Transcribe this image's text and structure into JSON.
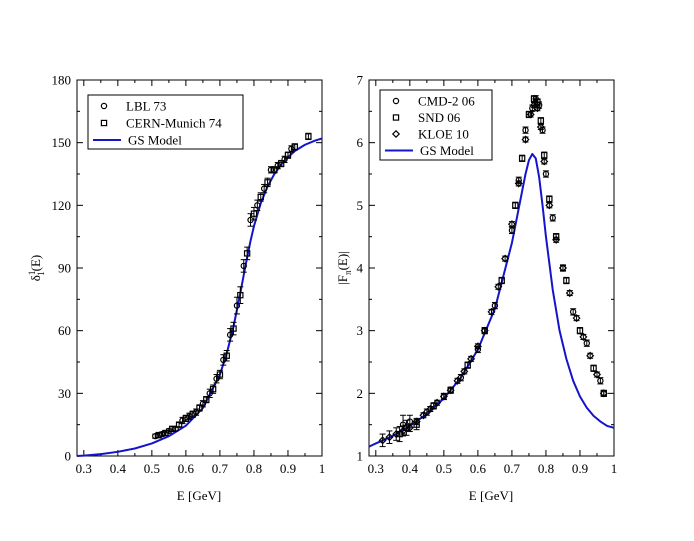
{
  "colors": {
    "model_line": "#1414cc",
    "points": "#000000",
    "background": "#ffffff"
  },
  "chart_data": [
    {
      "type": "scatter",
      "panel": "left",
      "xlabel": "E  [GeV]",
      "ylabel": "δ",
      "ylabel_sup": "1",
      "ylabel_sub": "1",
      "ylabel_suffix": "(E)",
      "xlim": [
        0.28,
        1.0
      ],
      "ylim": [
        0,
        180
      ],
      "xticks": [
        0.3,
        0.4,
        0.5,
        0.6,
        0.7,
        0.8,
        0.9,
        1.0
      ],
      "xtick_labels": [
        "0.3",
        "0.4",
        "0.5",
        "0.6",
        "0.7",
        "0.8",
        "0.9",
        "1"
      ],
      "yticks": [
        0,
        30,
        60,
        90,
        120,
        150,
        180
      ],
      "ytick_labels": [
        "0",
        "30",
        "60",
        "90",
        "120",
        "150",
        "180"
      ],
      "legend_position": "top-left",
      "legend": [
        {
          "label": "LBL 73",
          "marker": "circle"
        },
        {
          "label": "CERN-Munich 74",
          "marker": "square"
        },
        {
          "label": "GS Model",
          "marker": "line"
        }
      ],
      "series": [
        {
          "name": "LBL 73",
          "marker": "circle",
          "points": [
            [
              0.51,
              9.5,
              1
            ],
            [
              0.53,
              10.5,
              1
            ],
            [
              0.55,
              12,
              1
            ],
            [
              0.57,
              13,
              1
            ],
            [
              0.59,
              17,
              1.5
            ],
            [
              0.61,
              19,
              1.5
            ],
            [
              0.63,
              21,
              1.5
            ],
            [
              0.65,
              25,
              1.5
            ],
            [
              0.67,
              30,
              2
            ],
            [
              0.69,
              37,
              2
            ],
            [
              0.71,
              46,
              2.5
            ],
            [
              0.73,
              58,
              3
            ],
            [
              0.75,
              72,
              4
            ],
            [
              0.77,
              91,
              3
            ],
            [
              0.79,
              113,
              3
            ],
            [
              0.81,
              120,
              2.5
            ],
            [
              0.83,
              128,
              2
            ],
            [
              0.85,
              137,
              1.5
            ],
            [
              0.87,
              139,
              1.5
            ],
            [
              0.89,
              142,
              1.5
            ],
            [
              0.91,
              147,
              1.5
            ]
          ]
        },
        {
          "name": "CERN-Munich 74",
          "marker": "square",
          "points": [
            [
              0.52,
              10,
              1
            ],
            [
              0.54,
              11,
              1
            ],
            [
              0.56,
              13,
              1
            ],
            [
              0.58,
              15,
              1
            ],
            [
              0.6,
              18,
              1.5
            ],
            [
              0.62,
              20,
              1.5
            ],
            [
              0.64,
              23,
              1.5
            ],
            [
              0.66,
              27,
              1.5
            ],
            [
              0.68,
              32,
              2
            ],
            [
              0.7,
              39,
              2
            ],
            [
              0.72,
              48,
              2.5
            ],
            [
              0.74,
              61,
              3
            ],
            [
              0.76,
              77,
              4
            ],
            [
              0.78,
              97,
              3
            ],
            [
              0.8,
              116,
              3
            ],
            [
              0.82,
              124,
              2
            ],
            [
              0.84,
              131,
              2
            ],
            [
              0.86,
              137,
              1.5
            ],
            [
              0.88,
              140,
              1.5
            ],
            [
              0.9,
              144,
              1.5
            ],
            [
              0.92,
              148,
              1.5
            ],
            [
              0.96,
              153,
              1.5
            ]
          ]
        },
        {
          "name": "GS Model",
          "marker": "line",
          "points": [
            [
              0.28,
              0
            ],
            [
              0.3,
              0.2
            ],
            [
              0.35,
              0.9
            ],
            [
              0.4,
              2
            ],
            [
              0.45,
              3.6
            ],
            [
              0.5,
              6
            ],
            [
              0.55,
              9.5
            ],
            [
              0.6,
              14.5
            ],
            [
              0.65,
              23
            ],
            [
              0.7,
              39
            ],
            [
              0.72,
              49
            ],
            [
              0.74,
              62
            ],
            [
              0.76,
              78
            ],
            [
              0.775,
              91
            ],
            [
              0.79,
              103
            ],
            [
              0.8,
              110
            ],
            [
              0.82,
              121
            ],
            [
              0.84,
              129
            ],
            [
              0.86,
              135
            ],
            [
              0.88,
              139.5
            ],
            [
              0.9,
              143
            ],
            [
              0.92,
              146
            ],
            [
              0.95,
              149
            ],
            [
              0.98,
              151
            ],
            [
              1.0,
              152
            ]
          ]
        }
      ]
    },
    {
      "type": "scatter",
      "panel": "right",
      "xlabel": "E  [GeV]",
      "ylabel": "|F",
      "ylabel_sub": "π",
      "ylabel_suffix": "(E)|",
      "xlim": [
        0.28,
        1.0
      ],
      "ylim": [
        1,
        7
      ],
      "xticks": [
        0.3,
        0.4,
        0.5,
        0.6,
        0.7,
        0.8,
        0.9,
        1.0
      ],
      "xtick_labels": [
        "0.3",
        "0.4",
        "0.5",
        "0.6",
        "0.7",
        "0.8",
        "0.9",
        "1"
      ],
      "yticks": [
        1,
        2,
        3,
        4,
        5,
        6,
        7
      ],
      "ytick_labels": [
        "1",
        "2",
        "3",
        "4",
        "5",
        "6",
        "7"
      ],
      "legend_position": "top-left",
      "legend": [
        {
          "label": "CMD-2 06",
          "marker": "circle"
        },
        {
          "label": "SND 06",
          "marker": "square"
        },
        {
          "label": "KLOE 10",
          "marker": "diamond"
        },
        {
          "label": "GS Model",
          "marker": "line"
        }
      ],
      "series": [
        {
          "name": "CMD-2 06",
          "marker": "circle",
          "points": [
            [
              0.38,
              1.5,
              0.15
            ],
            [
              0.4,
              1.55,
              0.1
            ],
            [
              0.45,
              1.7,
              0.05
            ],
            [
              0.5,
              1.95,
              0.05
            ],
            [
              0.55,
              2.25,
              0.05
            ],
            [
              0.6,
              2.7,
              0.05
            ],
            [
              0.65,
              3.4,
              0.05
            ],
            [
              0.7,
              4.6,
              0.05
            ],
            [
              0.72,
              5.4,
              0.05
            ],
            [
              0.74,
              6.2,
              0.05
            ],
            [
              0.76,
              6.55,
              0.05
            ],
            [
              0.77,
              6.7,
              0.05
            ],
            [
              0.78,
              6.6,
              0.05
            ],
            [
              0.79,
              6.2,
              0.05
            ],
            [
              0.8,
              5.5,
              0.05
            ],
            [
              0.82,
              4.8,
              0.05
            ],
            [
              0.85,
              4.0,
              0.05
            ],
            [
              0.88,
              3.3,
              0.05
            ],
            [
              0.92,
              2.8,
              0.05
            ],
            [
              0.96,
              2.2,
              0.05
            ]
          ]
        },
        {
          "name": "SND 06",
          "marker": "square",
          "points": [
            [
              0.37,
              1.35,
              0.12
            ],
            [
              0.39,
              1.45,
              0.12
            ],
            [
              0.42,
              1.5,
              0.08
            ],
            [
              0.47,
              1.8,
              0.05
            ],
            [
              0.52,
              2.05,
              0.05
            ],
            [
              0.57,
              2.45,
              0.05
            ],
            [
              0.62,
              3.0,
              0.05
            ],
            [
              0.67,
              3.8,
              0.05
            ],
            [
              0.71,
              5.0,
              0.05
            ],
            [
              0.73,
              5.75,
              0.05
            ],
            [
              0.75,
              6.45,
              0.05
            ],
            [
              0.765,
              6.7,
              0.05
            ],
            [
              0.775,
              6.65,
              0.05
            ],
            [
              0.785,
              6.35,
              0.05
            ],
            [
              0.795,
              5.8,
              0.05
            ],
            [
              0.81,
              5.1,
              0.05
            ],
            [
              0.83,
              4.5,
              0.05
            ],
            [
              0.86,
              3.8,
              0.05
            ],
            [
              0.9,
              3.0,
              0.05
            ],
            [
              0.94,
              2.4,
              0.05
            ],
            [
              0.97,
              2.0,
              0.05
            ]
          ]
        },
        {
          "name": "KLOE 10",
          "marker": "diamond",
          "points": [
            [
              0.32,
              1.25,
              0.1
            ],
            [
              0.34,
              1.3,
              0.1
            ],
            [
              0.36,
              1.35,
              0.1
            ],
            [
              0.38,
              1.4,
              0.08
            ],
            [
              0.4,
              1.45,
              0.06
            ],
            [
              0.42,
              1.55,
              0.05
            ],
            [
              0.44,
              1.65,
              0.04
            ],
            [
              0.46,
              1.75,
              0.04
            ],
            [
              0.48,
              1.85,
              0.04
            ],
            [
              0.5,
              1.95,
              0.04
            ],
            [
              0.52,
              2.05,
              0.04
            ],
            [
              0.54,
              2.2,
              0.04
            ],
            [
              0.56,
              2.35,
              0.04
            ],
            [
              0.58,
              2.55,
              0.04
            ],
            [
              0.6,
              2.75,
              0.04
            ],
            [
              0.62,
              3.0,
              0.04
            ],
            [
              0.64,
              3.3,
              0.04
            ],
            [
              0.66,
              3.7,
              0.04
            ],
            [
              0.68,
              4.15,
              0.04
            ],
            [
              0.7,
              4.7,
              0.04
            ],
            [
              0.72,
              5.35,
              0.04
            ],
            [
              0.74,
              6.05,
              0.04
            ],
            [
              0.755,
              6.45,
              0.04
            ],
            [
              0.765,
              6.6,
              0.04
            ],
            [
              0.775,
              6.55,
              0.04
            ],
            [
              0.785,
              6.25,
              0.04
            ],
            [
              0.795,
              5.7,
              0.04
            ],
            [
              0.81,
              5.0,
              0.04
            ],
            [
              0.83,
              4.45,
              0.04
            ],
            [
              0.85,
              4.0,
              0.04
            ],
            [
              0.87,
              3.6,
              0.04
            ],
            [
              0.89,
              3.2,
              0.04
            ],
            [
              0.91,
              2.9,
              0.04
            ],
            [
              0.93,
              2.6,
              0.04
            ],
            [
              0.95,
              2.3,
              0.04
            ],
            [
              0.97,
              2.0,
              0.04
            ]
          ]
        },
        {
          "name": "GS Model",
          "marker": "line",
          "points": [
            [
              0.28,
              1.15
            ],
            [
              0.3,
              1.2
            ],
            [
              0.35,
              1.32
            ],
            [
              0.4,
              1.48
            ],
            [
              0.45,
              1.67
            ],
            [
              0.5,
              1.92
            ],
            [
              0.55,
              2.25
            ],
            [
              0.6,
              2.7
            ],
            [
              0.65,
              3.35
            ],
            [
              0.7,
              4.4
            ],
            [
              0.72,
              4.95
            ],
            [
              0.74,
              5.5
            ],
            [
              0.75,
              5.72
            ],
            [
              0.76,
              5.82
            ],
            [
              0.77,
              5.75
            ],
            [
              0.78,
              5.45
            ],
            [
              0.79,
              5.0
            ],
            [
              0.8,
              4.5
            ],
            [
              0.82,
              3.65
            ],
            [
              0.84,
              3.0
            ],
            [
              0.86,
              2.55
            ],
            [
              0.88,
              2.2
            ],
            [
              0.9,
              1.95
            ],
            [
              0.92,
              1.77
            ],
            [
              0.94,
              1.64
            ],
            [
              0.96,
              1.55
            ],
            [
              0.98,
              1.48
            ],
            [
              1.0,
              1.45
            ]
          ]
        }
      ]
    }
  ]
}
